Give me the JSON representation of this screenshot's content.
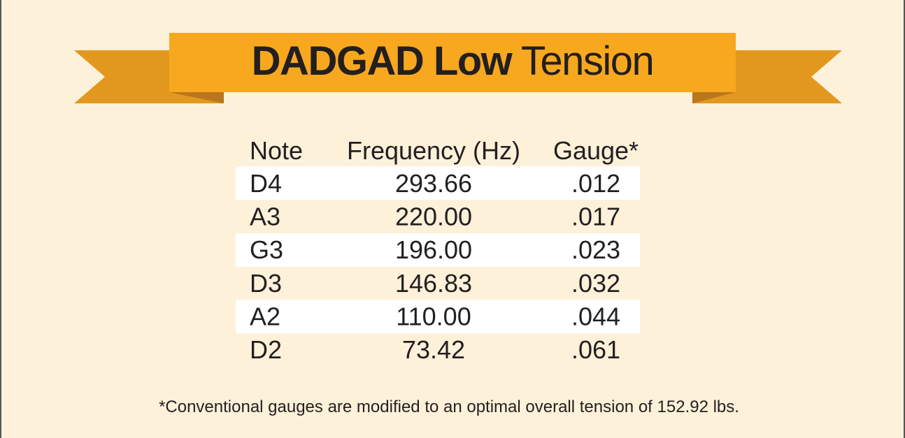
{
  "header": {
    "title_bold": "DADGAD Low",
    "title_light": "Tension"
  },
  "table": {
    "columns": [
      "Note",
      "Frequency (Hz)",
      "Gauge*"
    ],
    "rows": [
      [
        "D4",
        "293.66",
        ".012"
      ],
      [
        "A3",
        "220.00",
        ".017"
      ],
      [
        "G3",
        "196.00",
        ".023"
      ],
      [
        "D3",
        "146.83",
        ".032"
      ],
      [
        "A2",
        "110.00",
        ".044"
      ],
      [
        "D2",
        "73.42",
        ".061"
      ]
    ]
  },
  "footnote": "*Conventional gauges are modified to an optimal overall tension of 152.92 lbs."
}
